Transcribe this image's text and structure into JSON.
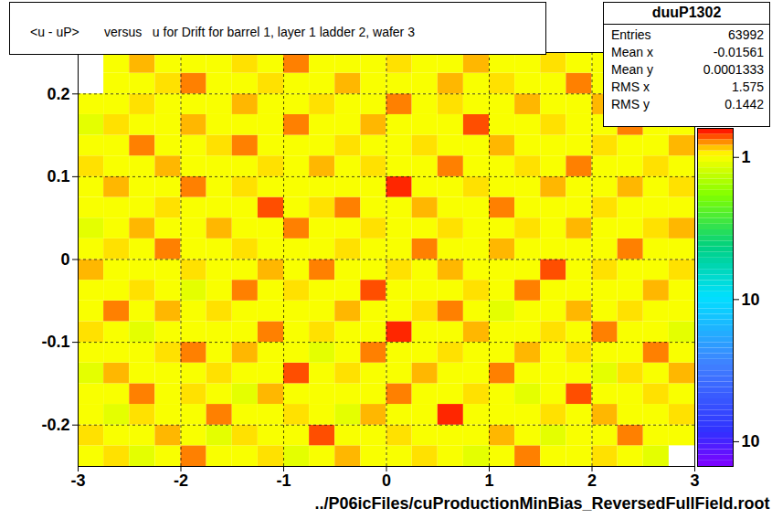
{
  "chart_data": {
    "type": "heatmap",
    "title": "<u - uP>       versus   u for Drift for barrel 1, layer 1 ladder 2, wafer 3",
    "x_label": "../P06icFiles/cuProductionMinBias_ReversedFullField.root",
    "xlim": [
      -3,
      3
    ],
    "ylim": [
      -0.25,
      0.25
    ],
    "xticks": [
      -3,
      -2,
      -1,
      0,
      1,
      2,
      3
    ],
    "yticks": [
      -0.2,
      -0.1,
      0,
      0.1,
      0.2
    ],
    "grid": true,
    "log": "z",
    "cells": {
      "x_bins": [
        -3,
        -2.75,
        -2.5,
        -2.25,
        -2,
        -1.75,
        -1.5,
        -1.25,
        -1,
        -0.75,
        -0.5,
        -0.25,
        0,
        0.25,
        0.5,
        0.75,
        1,
        1.25,
        1.5,
        1.75,
        2,
        2.25,
        2.5,
        2.75,
        3
      ],
      "y_bins": [
        -0.25,
        -0.225,
        -0.2,
        -0.175,
        -0.15,
        -0.125,
        -0.1,
        -0.075,
        -0.05,
        -0.025,
        0,
        0.025,
        0.05,
        0.075,
        0.1,
        0.125,
        0.15,
        0.175,
        0.2,
        0.225,
        0.25
      ],
      "values": [
        [
          1,
          1.1,
          0.9,
          1,
          1.3,
          1,
          1,
          1.1,
          0.9,
          1,
          1.2,
          1,
          1,
          1.1,
          1,
          0.9,
          1,
          1.3,
          1,
          1,
          1.1,
          1,
          0.9,
          null
        ],
        [
          1.1,
          1,
          1,
          1.2,
          1,
          0.9,
          1.1,
          1,
          1,
          1.4,
          1,
          1,
          1.1,
          1,
          1,
          1,
          1.2,
          1,
          0.9,
          1,
          1,
          1.3,
          1,
          1
        ],
        [
          1,
          0.9,
          1.1,
          1,
          1,
          1.3,
          1,
          1,
          1.1,
          1,
          0.9,
          1.2,
          1,
          1,
          1.5,
          1,
          1,
          1,
          1.1,
          1,
          1.2,
          1,
          1,
          1.1
        ],
        [
          1,
          1,
          1.3,
          1,
          1.1,
          1,
          0.9,
          1.2,
          1,
          1,
          1,
          1,
          1.3,
          1,
          1,
          1.1,
          1,
          0.9,
          1,
          1.4,
          1,
          1,
          1.1,
          1
        ],
        [
          0.9,
          1.2,
          1,
          1,
          1,
          1.1,
          1,
          1,
          1.4,
          1,
          1.1,
          1,
          1,
          1.2,
          1,
          1,
          1.3,
          1,
          1,
          1,
          0.9,
          1.1,
          1,
          1.2
        ],
        [
          1,
          1,
          1,
          1.1,
          1.3,
          1,
          1.2,
          1,
          1,
          0.9,
          1,
          1.3,
          1,
          1,
          1.1,
          1,
          1,
          1.2,
          1,
          1.1,
          1,
          1,
          1.3,
          1
        ],
        [
          1.1,
          1,
          0.9,
          1,
          1,
          1,
          1,
          1.3,
          1,
          1.1,
          1,
          1,
          1.5,
          1,
          1,
          1.2,
          1,
          1,
          1.1,
          1,
          1.3,
          1,
          1,
          0.9
        ],
        [
          1,
          1.3,
          1,
          1.2,
          1,
          1.1,
          1,
          1,
          1,
          1,
          1.2,
          1,
          1,
          1.1,
          1.3,
          1,
          0.9,
          1,
          1,
          1.2,
          1,
          1.1,
          1,
          1
        ],
        [
          1,
          1,
          1.1,
          1,
          0.9,
          1,
          1.3,
          1,
          1.1,
          1,
          1,
          1.4,
          1,
          1,
          1,
          1.1,
          1,
          1.3,
          1,
          1,
          1,
          1,
          1.2,
          1
        ],
        [
          1.2,
          1,
          1,
          1,
          1.1,
          1,
          1,
          1.2,
          1,
          1.3,
          1,
          1,
          1.1,
          1,
          1.2,
          1,
          1,
          1,
          1.4,
          1,
          1.1,
          1,
          1,
          1.1
        ],
        [
          1,
          1.1,
          1,
          1.3,
          1,
          1,
          1.1,
          1,
          1,
          1,
          1.1,
          1,
          1,
          1.3,
          1,
          1,
          1.2,
          1,
          1,
          1,
          1,
          1.3,
          1,
          1
        ],
        [
          0.9,
          1,
          1.2,
          1,
          1,
          1.2,
          1,
          1,
          1.3,
          1,
          1,
          1.1,
          1,
          1,
          1.1,
          1,
          1,
          1.1,
          1,
          1.2,
          1,
          1,
          1.1,
          1.2
        ],
        [
          1,
          1,
          1,
          1.1,
          1,
          1,
          1,
          1.4,
          1,
          1.1,
          1.3,
          1,
          1,
          1.2,
          1,
          1,
          1.3,
          1,
          1,
          1,
          1.1,
          1,
          1,
          1
        ],
        [
          1,
          1.2,
          1,
          1,
          1.3,
          1,
          1.1,
          1,
          1,
          1,
          1,
          1,
          1.5,
          1,
          1,
          1.1,
          1,
          1,
          1.2,
          1,
          1,
          1.2,
          1,
          1.1
        ],
        [
          1.1,
          1,
          1,
          1.2,
          1,
          1,
          1,
          1.1,
          1,
          1.2,
          1,
          1.1,
          1,
          1,
          1.3,
          1,
          1,
          1.1,
          1,
          1.3,
          1,
          1,
          1.1,
          1
        ],
        [
          1,
          1,
          1.3,
          1,
          1,
          1.1,
          1.3,
          1,
          1,
          1,
          1.1,
          1,
          1,
          1.1,
          1,
          1,
          1.2,
          1,
          1,
          1,
          1.1,
          1,
          1,
          1.2
        ],
        [
          0.9,
          1.1,
          1,
          1,
          1.2,
          1,
          1,
          1,
          1.3,
          1,
          1,
          1.2,
          1,
          1,
          1,
          1.4,
          1,
          1,
          1.1,
          1,
          1,
          1.3,
          1,
          1
        ],
        [
          1,
          1,
          1.1,
          1,
          1,
          1,
          1.2,
          1,
          1,
          1.1,
          1,
          1,
          1.3,
          1,
          1.1,
          1,
          1,
          1.2,
          1,
          1,
          1.2,
          1,
          1,
          1.1
        ],
        [
          null,
          1,
          1,
          1.1,
          1.3,
          1,
          1,
          1.1,
          1,
          1,
          1.2,
          1,
          1,
          1,
          1.2,
          1,
          1.1,
          1,
          1,
          1.3,
          1,
          1,
          1.1,
          1
        ],
        [
          null,
          1,
          1.2,
          1,
          1,
          1,
          1.1,
          1,
          1.3,
          1,
          1,
          1,
          1.1,
          1,
          1,
          1.2,
          1,
          1,
          1.1,
          1,
          1,
          1.1,
          1,
          1.3
        ]
      ]
    },
    "colorbar": {
      "range": [
        0.0067,
        1.6
      ],
      "ticks": [
        {
          "value": 1,
          "label": "1"
        },
        {
          "value": 0.1,
          "label": "10"
        },
        {
          "value": 0.01,
          "label": "10"
        }
      ]
    },
    "stats": {
      "title": "duuP1302",
      "rows": [
        {
          "label": "Entries",
          "value": 63992
        },
        {
          "label": "Mean x",
          "value": -0.01561
        },
        {
          "label": "Mean y",
          "value": 0.0001333
        },
        {
          "label": "RMS x",
          "value": 1.575
        },
        {
          "label": "RMS y",
          "value": 0.1442
        }
      ]
    }
  }
}
